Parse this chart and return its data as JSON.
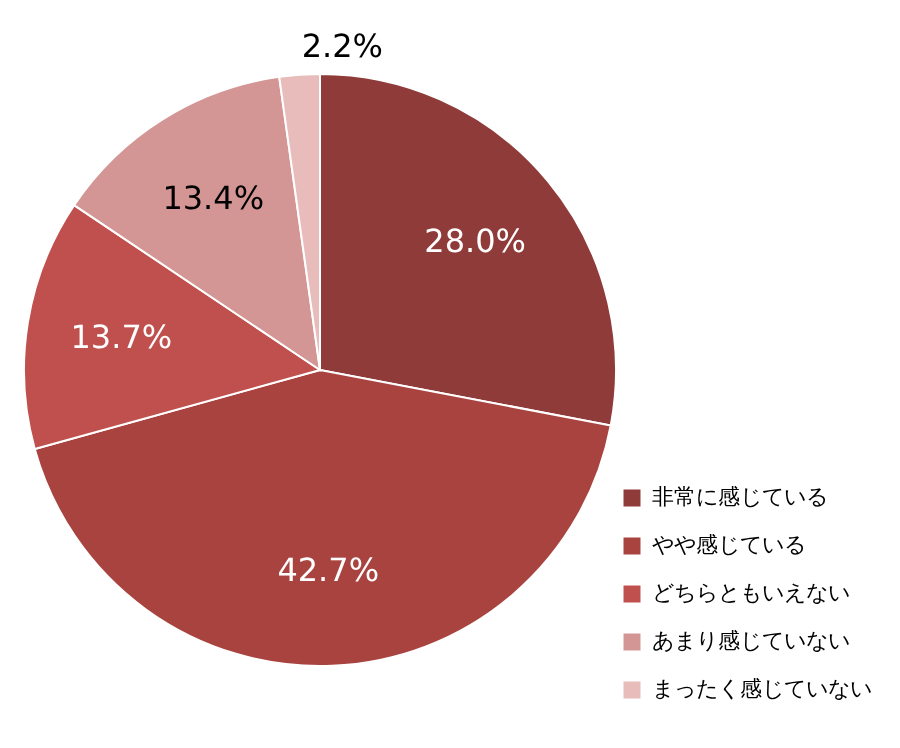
{
  "chart_data": {
    "type": "pie",
    "categories": [
      "非常に感じている",
      "やや感じている",
      "どちらともいえない",
      "あまり感じていない",
      "まったく感じていない"
    ],
    "values": [
      28.0,
      42.7,
      13.7,
      13.4,
      2.2
    ],
    "colors": [
      "#8e3b39",
      "#a9433f",
      "#c0504d",
      "#d39694",
      "#e8bcbb"
    ],
    "value_labels": [
      "28.0%",
      "42.7%",
      "13.7%",
      "13.4%",
      "2.2%"
    ],
    "legend": "bottom right"
  }
}
